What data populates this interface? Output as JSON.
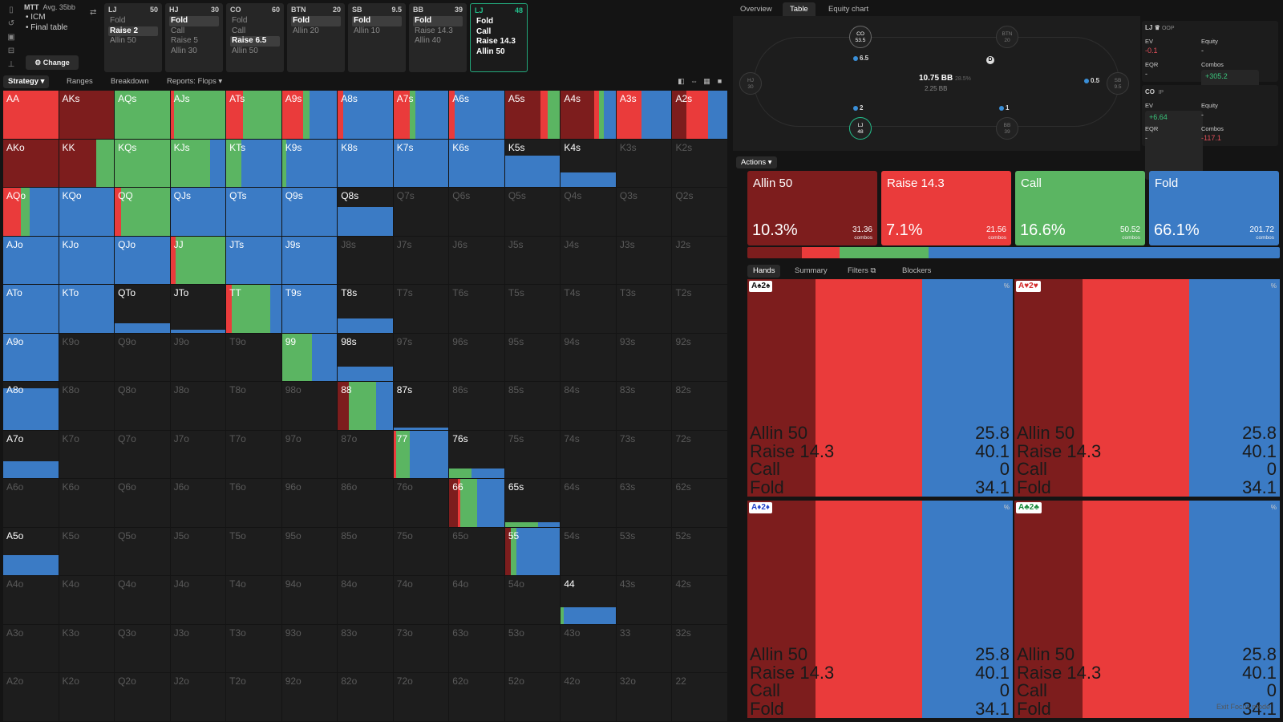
{
  "toolbar_icons": [
    "bookmark-icon",
    "history-icon",
    "save-icon",
    "tree-icon",
    "filter-icon"
  ],
  "info": {
    "title": "MTT",
    "avg_stack": "Avg. 35bb",
    "items": [
      "ICM",
      "Final table"
    ],
    "change_label": "Change"
  },
  "positions": [
    {
      "name": "LJ",
      "stack": "50",
      "actions": [
        "Fold",
        "Raise 2",
        "Allin 50"
      ],
      "selected": 1
    },
    {
      "name": "HJ",
      "stack": "30",
      "actions": [
        "Fold",
        "Call",
        "Raise 5",
        "Allin 30"
      ],
      "selected": 0
    },
    {
      "name": "CO",
      "stack": "60",
      "actions": [
        "Fold",
        "Call",
        "Raise 6.5",
        "Allin 50"
      ],
      "selected": 2
    },
    {
      "name": "BTN",
      "stack": "20",
      "actions": [
        "Fold",
        "Allin 20"
      ],
      "selected": 0
    },
    {
      "name": "SB",
      "stack": "9.5",
      "actions": [
        "Fold",
        "Allin 10"
      ],
      "selected": 0
    },
    {
      "name": "BB",
      "stack": "39",
      "actions": [
        "Fold",
        "Raise 14.3",
        "Allin 40"
      ],
      "selected": 0
    },
    {
      "name": "LJ",
      "stack": "48",
      "actions": [
        "Fold",
        "Call",
        "Raise 14.3",
        "Allin 50"
      ],
      "selected": -1,
      "active": true
    }
  ],
  "left_tabs": {
    "strategy": "Strategy",
    "ranges": "Ranges",
    "breakdown": "Breakdown",
    "reports": "Reports: Flops"
  },
  "grid": [
    [
      "AA",
      "AKs",
      "AQs",
      "AJs",
      "ATs",
      "A9s",
      "A8s",
      "A7s",
      "A6s",
      "A5s",
      "A4s",
      "A3s",
      "A2s"
    ],
    [
      "AKo",
      "KK",
      "KQs",
      "KJs",
      "KTs",
      "K9s",
      "K8s",
      "K7s",
      "K6s",
      "K5s",
      "K4s",
      "K3s",
      "K2s"
    ],
    [
      "AQo",
      "KQo",
      "QQ",
      "QJs",
      "QTs",
      "Q9s",
      "Q8s",
      "Q7s",
      "Q6s",
      "Q5s",
      "Q4s",
      "Q3s",
      "Q2s"
    ],
    [
      "AJo",
      "KJo",
      "QJo",
      "JJ",
      "JTs",
      "J9s",
      "J8s",
      "J7s",
      "J6s",
      "J5s",
      "J4s",
      "J3s",
      "J2s"
    ],
    [
      "ATo",
      "KTo",
      "QTo",
      "JTo",
      "TT",
      "T9s",
      "T8s",
      "T7s",
      "T6s",
      "T5s",
      "T4s",
      "T3s",
      "T2s"
    ],
    [
      "A9o",
      "K9o",
      "Q9o",
      "J9o",
      "T9o",
      "99",
      "98s",
      "97s",
      "96s",
      "95s",
      "94s",
      "93s",
      "92s"
    ],
    [
      "A8o",
      "K8o",
      "Q8o",
      "J8o",
      "T8o",
      "98o",
      "88",
      "87s",
      "86s",
      "85s",
      "84s",
      "83s",
      "82s"
    ],
    [
      "A7o",
      "K7o",
      "Q7o",
      "J7o",
      "T7o",
      "97o",
      "87o",
      "77",
      "76s",
      "75s",
      "74s",
      "73s",
      "72s"
    ],
    [
      "A6o",
      "K6o",
      "Q6o",
      "J6o",
      "T6o",
      "96o",
      "86o",
      "76o",
      "66",
      "65s",
      "64s",
      "63s",
      "62s"
    ],
    [
      "A5o",
      "K5o",
      "Q5o",
      "J5o",
      "T5o",
      "95o",
      "85o",
      "75o",
      "65o",
      "55",
      "54s",
      "53s",
      "52s"
    ],
    [
      "A4o",
      "K4o",
      "Q4o",
      "J4o",
      "T4o",
      "94o",
      "84o",
      "74o",
      "64o",
      "54o",
      "44",
      "43s",
      "42s"
    ],
    [
      "A3o",
      "K3o",
      "Q3o",
      "J3o",
      "T3o",
      "93o",
      "83o",
      "73o",
      "63o",
      "53o",
      "43o",
      "33",
      "32s"
    ],
    [
      "A2o",
      "K2o",
      "Q2o",
      "J2o",
      "T2o",
      "92o",
      "82o",
      "72o",
      "62o",
      "52o",
      "42o",
      "32o",
      "22"
    ]
  ],
  "strategies": {
    "AA": {
      "f": 1,
      "mix": [
        0,
        1,
        0,
        0
      ]
    },
    "AKs": {
      "f": 1,
      "mix": [
        1,
        0,
        0,
        0
      ]
    },
    "AQs": {
      "f": 1,
      "mix": [
        0,
        0,
        1,
        0
      ]
    },
    "AJs": {
      "f": 1,
      "mix": [
        0,
        0.06,
        0.94,
        0
      ]
    },
    "ATs": {
      "f": 1,
      "mix": [
        0,
        0.3,
        0.7,
        0
      ]
    },
    "A9s": {
      "f": 1,
      "mix": [
        0,
        0.38,
        0.12,
        0.5
      ]
    },
    "A8s": {
      "f": 1,
      "mix": [
        0,
        0.1,
        0,
        0.9
      ]
    },
    "A7s": {
      "f": 1,
      "mix": [
        0,
        0.3,
        0.1,
        0.6
      ]
    },
    "A6s": {
      "f": 1,
      "mix": [
        0,
        0.1,
        0,
        0.9
      ]
    },
    "A5s": {
      "f": 1,
      "mix": [
        0.65,
        0.12,
        0.23,
        0
      ]
    },
    "A4s": {
      "f": 1,
      "mix": [
        0.6,
        0.1,
        0.08,
        0.22
      ]
    },
    "A3s": {
      "f": 1,
      "mix": [
        0,
        0.45,
        0,
        0.55
      ]
    },
    "A2s": {
      "f": 1,
      "mix": [
        0.25,
        0.4,
        0,
        0.35
      ]
    },
    "AKo": {
      "f": 1,
      "mix": [
        1,
        0,
        0,
        0
      ]
    },
    "KK": {
      "f": 1,
      "mix": [
        0.68,
        0,
        0.32,
        0
      ]
    },
    "KQs": {
      "f": 1,
      "mix": [
        0,
        0,
        1,
        0
      ]
    },
    "KJs": {
      "f": 1,
      "mix": [
        0,
        0,
        0.72,
        0.28
      ]
    },
    "KTs": {
      "f": 1,
      "mix": [
        0,
        0,
        0.27,
        0.73
      ]
    },
    "K9s": {
      "f": 1,
      "mix": [
        0,
        0,
        0.08,
        0.92
      ]
    },
    "K8s": {
      "f": 1,
      "mix": [
        0,
        0,
        0,
        1
      ]
    },
    "K7s": {
      "f": 1,
      "mix": [
        0,
        0,
        0,
        1
      ]
    },
    "K6s": {
      "f": 1,
      "mix": [
        0,
        0,
        0,
        1
      ]
    },
    "K5s": {
      "f": 0.65,
      "mix": [
        0,
        0,
        0,
        1
      ]
    },
    "K4s": {
      "f": 0.3,
      "mix": [
        0,
        0,
        0,
        1
      ]
    },
    "AQo": {
      "f": 1,
      "mix": [
        0,
        0.32,
        0.16,
        0.52
      ]
    },
    "KQo": {
      "f": 1,
      "mix": [
        0,
        0,
        0,
        1
      ]
    },
    "QQ": {
      "f": 1,
      "mix": [
        0,
        0.12,
        0.88,
        0
      ]
    },
    "QJs": {
      "f": 1,
      "mix": [
        0,
        0,
        0,
        1
      ]
    },
    "QTs": {
      "f": 1,
      "mix": [
        0,
        0,
        0,
        1
      ]
    },
    "Q9s": {
      "f": 1,
      "mix": [
        0,
        0,
        0,
        1
      ]
    },
    "Q8s": {
      "f": 0.6,
      "mix": [
        0,
        0,
        0,
        1
      ]
    },
    "AJo": {
      "f": 1,
      "mix": [
        0,
        0,
        0,
        1
      ]
    },
    "KJo": {
      "f": 1,
      "mix": [
        0,
        0,
        0,
        1
      ]
    },
    "QJo": {
      "f": 1,
      "mix": [
        0,
        0,
        0,
        1
      ]
    },
    "JJ": {
      "f": 1,
      "mix": [
        0,
        0.1,
        0.9,
        0
      ]
    },
    "JTs": {
      "f": 1,
      "mix": [
        0,
        0,
        0,
        1
      ]
    },
    "J9s": {
      "f": 1,
      "mix": [
        0,
        0,
        0,
        1
      ]
    },
    "ATo": {
      "f": 1,
      "mix": [
        0,
        0,
        0,
        1
      ]
    },
    "KTo": {
      "f": 1,
      "mix": [
        0,
        0,
        0,
        1
      ]
    },
    "QTo": {
      "f": 0.2,
      "mix": [
        0,
        0,
        0,
        1
      ]
    },
    "JTo": {
      "f": 0.07,
      "mix": [
        0,
        0,
        0,
        1
      ]
    },
    "TT": {
      "f": 1,
      "mix": [
        0,
        0.1,
        0.7,
        0.2
      ]
    },
    "T9s": {
      "f": 1,
      "mix": [
        0,
        0,
        0,
        1
      ]
    },
    "T8s": {
      "f": 0.3,
      "mix": [
        0,
        0,
        0,
        1
      ]
    },
    "A9o": {
      "f": 1,
      "mix": [
        0,
        0,
        0,
        1
      ]
    },
    "99": {
      "f": 1,
      "mix": [
        0,
        0,
        0.55,
        0.45
      ]
    },
    "98s": {
      "f": 0.3,
      "mix": [
        0,
        0,
        0,
        1
      ]
    },
    "A8o": {
      "f": 0.87,
      "mix": [
        0,
        0,
        0,
        1
      ]
    },
    "88": {
      "f": 1,
      "mix": [
        0.2,
        0,
        0.5,
        0.3
      ]
    },
    "87s": {
      "f": 0.05,
      "mix": [
        0,
        0,
        0,
        1
      ]
    },
    "A7o": {
      "f": 0.35,
      "mix": [
        0,
        0,
        0,
        1
      ]
    },
    "77": {
      "f": 1,
      "mix": [
        0,
        0.05,
        0.25,
        0.7
      ]
    },
    "76s": {
      "f": 0.2,
      "mix": [
        0,
        0,
        0.4,
        0.6
      ]
    },
    "66": {
      "f": 1,
      "mix": [
        0.15,
        0.05,
        0.3,
        0.5
      ]
    },
    "65s": {
      "f": 0.1,
      "mix": [
        0,
        0,
        0.6,
        0.4
      ]
    },
    "A5o": {
      "f": 0.43,
      "mix": [
        0,
        0,
        0,
        1
      ]
    },
    "55": {
      "f": 1,
      "mix": [
        0.1,
        0,
        0.1,
        0.8
      ]
    },
    "44": {
      "f": 0.35,
      "mix": [
        0,
        0,
        0.05,
        0.95
      ]
    }
  },
  "right_tabs": {
    "overview": "Overview",
    "table": "Table",
    "equity_chart": "Equity chart"
  },
  "table": {
    "pot": "10.75 BB",
    "pot_pct": "28.5%",
    "sub": "2.25 BB",
    "dealer": "D",
    "seats": [
      {
        "name": "CO",
        "stack": "53.5"
      },
      {
        "name": "BTN",
        "stack": "20"
      },
      {
        "name": "HJ",
        "stack": "30"
      },
      {
        "name": "SB",
        "stack": "9.5"
      },
      {
        "name": "LJ",
        "stack": "48"
      },
      {
        "name": "BB",
        "stack": "39"
      }
    ],
    "chips": [
      "6.5",
      "0.5",
      "2",
      "1"
    ]
  },
  "stats": [
    {
      "title": "LJ",
      "tag": "OOP",
      "ev": "-0.1",
      "equity": "-",
      "eqr": "-",
      "combos": "+305.2",
      "ev_color": "neg",
      "combos_color": "pos"
    },
    {
      "title": "CO",
      "tag": "IP",
      "ev": "+6.64",
      "equity": "-",
      "eqr": "-",
      "combos": "-117.1",
      "ev_color": "pos",
      "combos_color": "neg"
    }
  ],
  "stat_labels": {
    "ev": "EV",
    "equity": "Equity",
    "eqr": "EQR",
    "combos": "Combos"
  },
  "actions_label": "Actions",
  "colors": {
    "allin": "#7d1d1d",
    "raise": "#ea3b3b",
    "call": "#5bb562",
    "fold": "#3b7bc5",
    "accent": "#23c08c"
  },
  "actions": [
    {
      "name": "Allin 50",
      "pct": "10.3%",
      "combos": "31.36",
      "combos_label": "combos"
    },
    {
      "name": "Raise 14.3",
      "pct": "7.1%",
      "combos": "21.56",
      "combos_label": "combos"
    },
    {
      "name": "Call",
      "pct": "16.6%",
      "combos": "50.52",
      "combos_label": "combos"
    },
    {
      "name": "Fold",
      "pct": "66.1%",
      "combos": "201.72",
      "combos_label": "combos"
    }
  ],
  "freq": [
    10.3,
    7.1,
    16.6,
    66.1
  ],
  "hand_tabs": {
    "hands": "Hands",
    "summary": "Summary",
    "filters": "Filters",
    "blockers": "Blockers"
  },
  "hands": [
    {
      "card": "A♠2♠",
      "suit": "black",
      "rows": [
        [
          "Allin 50",
          "25.8"
        ],
        [
          "Raise 14.3",
          "40.1"
        ],
        [
          "Call",
          "0"
        ],
        [
          "Fold",
          "34.1"
        ]
      ]
    },
    {
      "card": "A♥2♥",
      "suit": "red",
      "rows": [
        [
          "Allin 50",
          "25.8"
        ],
        [
          "Raise 14.3",
          "40.1"
        ],
        [
          "Call",
          "0"
        ],
        [
          "Fold",
          "34.1"
        ]
      ]
    },
    {
      "card": "A♦2♦",
      "suit": "blue",
      "rows": [
        [
          "Allin 50",
          "25.8"
        ],
        [
          "Raise 14.3",
          "40.1"
        ],
        [
          "Call",
          "0"
        ],
        [
          "Fold",
          "34.1"
        ]
      ]
    },
    {
      "card": "A♣2♣",
      "suit": "green",
      "rows": [
        [
          "Allin 50",
          "25.8"
        ],
        [
          "Raise 14.3",
          "40.1"
        ],
        [
          "Call",
          "0"
        ],
        [
          "Fold",
          "34.1"
        ]
      ]
    }
  ],
  "hand_mix": [
    25.8,
    40.1,
    0,
    34.1
  ],
  "pct_symbol": "%",
  "exit_label": "Exit Focus mode"
}
